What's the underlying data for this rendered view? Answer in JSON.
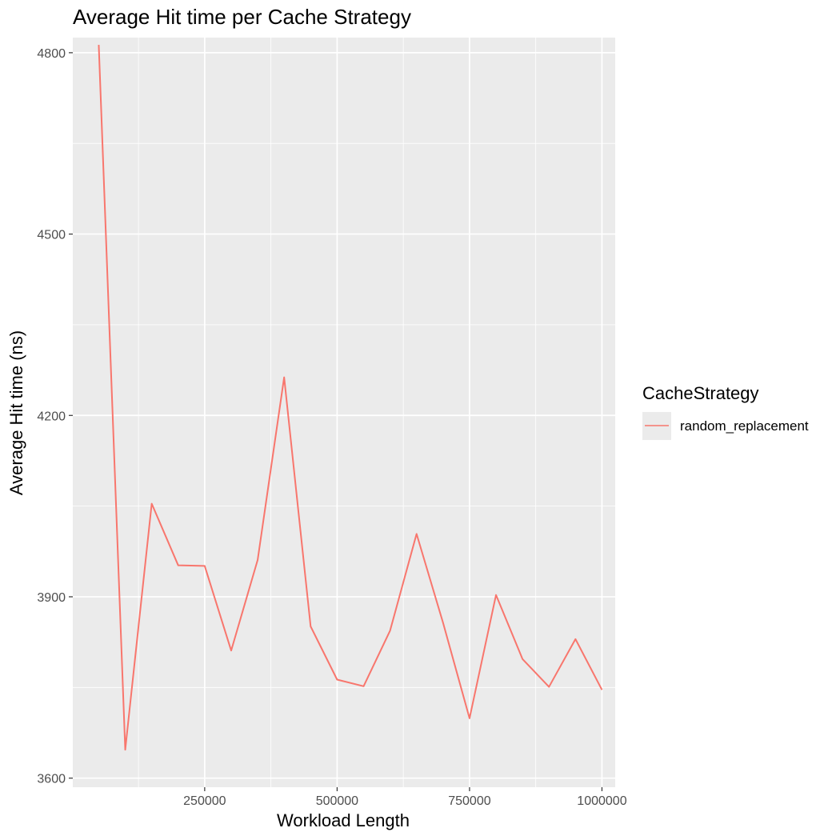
{
  "chart_data": {
    "type": "line",
    "title": "Average Hit time per Cache Strategy",
    "xlabel": "Workload Length",
    "ylabel": "Average Hit time (ns)",
    "xlim": [
      1000,
      1025000
    ],
    "ylim": [
      3585,
      4825
    ],
    "x_ticks": [
      250000,
      500000,
      750000,
      1000000
    ],
    "y_ticks": [
      3600,
      3900,
      4200,
      4500,
      4800
    ],
    "grid": true,
    "legend": {
      "title": "CacheStrategy",
      "position": "right"
    },
    "series": [
      {
        "name": "random_replacement",
        "color": "#F8766D",
        "x": [
          50000,
          100000,
          150000,
          200000,
          250000,
          300000,
          350000,
          400000,
          450000,
          500000,
          550000,
          600000,
          650000,
          700000,
          750000,
          800000,
          850000,
          900000,
          950000,
          1000000
        ],
        "y": [
          4813,
          3647,
          4054,
          3952,
          3951,
          3811,
          3961,
          4263,
          3851,
          3763,
          3752,
          3844,
          4004,
          3857,
          3699,
          3903,
          3797,
          3751,
          3830,
          3746
        ]
      }
    ]
  }
}
